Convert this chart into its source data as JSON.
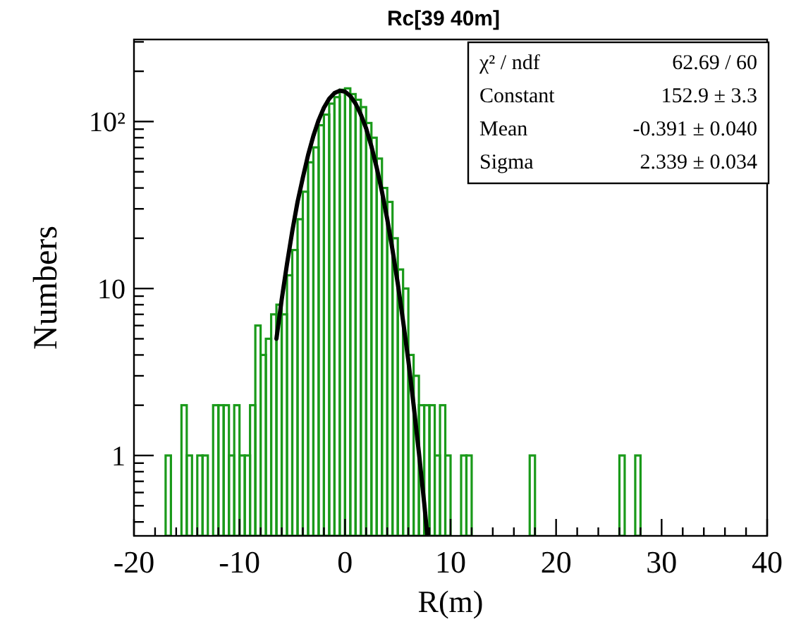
{
  "chart_data": {
    "type": "histogram",
    "title": "Rc[39 40m]",
    "xlabel": "R(m)",
    "ylabel": "Numbers",
    "log": "y",
    "bins": [
      -17,
      -16.5,
      -16,
      -15.5,
      -15,
      -14.5,
      -14,
      -13.5,
      -13,
      -12.5,
      -12,
      -11.5,
      -11,
      -10.5,
      -10,
      -9.5,
      -9,
      -8.5,
      -8,
      -7.5,
      -7,
      -6.5,
      -6,
      -5.5,
      -5,
      -4.5,
      -4,
      -3.5,
      -3,
      -2.5,
      -2,
      -1.5,
      -1,
      -0.5,
      0,
      0.5,
      1,
      1.5,
      2,
      2.5,
      3,
      3.5,
      4,
      4.5,
      5,
      5.5,
      6,
      6.5,
      7,
      7.5,
      8,
      8.5,
      9,
      9.5,
      10,
      10.5,
      11,
      11.5,
      12,
      12.5,
      13,
      13.5,
      14,
      14.5,
      15,
      15.5,
      16,
      16.5,
      17,
      17.5,
      18,
      18.5,
      19,
      19.5,
      20,
      20.5,
      21,
      21.5,
      22,
      22.5,
      23,
      23.5,
      24,
      24.5,
      25,
      25.5,
      26,
      26.5,
      27,
      27.5,
      28
    ],
    "values": [
      1,
      null,
      null,
      2,
      1,
      null,
      1,
      1,
      null,
      2,
      2,
      2,
      1,
      2,
      1,
      1,
      2,
      6,
      4,
      5,
      7,
      8,
      7,
      12,
      17,
      26,
      38,
      57,
      70,
      95,
      110,
      128,
      140,
      155,
      158,
      146,
      135,
      122,
      98,
      80,
      60,
      40,
      33,
      20,
      13,
      10,
      4,
      3,
      2,
      2,
      2,
      1,
      2,
      1,
      null,
      null,
      1,
      1,
      null,
      null,
      null,
      null,
      null,
      null,
      null,
      null,
      null,
      null,
      null,
      1,
      null,
      null,
      null,
      null,
      null,
      null,
      null,
      null,
      null,
      null,
      null,
      null,
      null,
      null,
      null,
      null,
      1,
      null,
      null,
      1
    ],
    "color": "#1a9a1a",
    "series": [
      {
        "type": "line",
        "color": "#000000",
        "x": [
          -6.5,
          -6,
          -5.5,
          -5,
          -4.5,
          -4,
          -3.5,
          -3,
          -2.5,
          -2,
          -1.5,
          -1,
          -0.5,
          0,
          0.5,
          1,
          1.5,
          2,
          2.5,
          3,
          3.5,
          4,
          4.5,
          5,
          5.5,
          6,
          6.5,
          7,
          7.5,
          7.8
        ],
        "values": [
          5,
          8.6,
          14,
          22,
          33,
          46,
          63,
          82,
          102,
          121,
          137,
          148,
          153,
          151,
          142,
          128,
          110,
          91,
          71,
          53,
          38,
          26,
          17,
          10.7,
          6.4,
          3.7,
          2,
          1.04,
          0.52,
          0.33
        ]
      }
    ],
    "xlim": [
      -20,
      40
    ],
    "ylim": [
      0.33,
      310
    ],
    "xticks": [
      -20,
      {
        "value": -18,
        "label": null
      },
      {
        "value": -16,
        "label": null
      },
      {
        "value": -14,
        "label": null
      },
      {
        "value": -12,
        "label": null
      },
      -10,
      {
        "value": -8,
        "label": null
      },
      {
        "value": -6,
        "label": null
      },
      {
        "value": -4,
        "label": null
      },
      {
        "value": -2,
        "label": null
      },
      0,
      {
        "value": 2,
        "label": null
      },
      {
        "value": 4,
        "label": null
      },
      {
        "value": 6,
        "label": null
      },
      {
        "value": 8,
        "label": null
      },
      10,
      {
        "value": 12,
        "label": null
      },
      {
        "value": 14,
        "label": null
      },
      {
        "value": 16,
        "label": null
      },
      {
        "value": 18,
        "label": null
      },
      20,
      {
        "value": 22,
        "label": null
      },
      {
        "value": 24,
        "label": null
      },
      {
        "value": 26,
        "label": null
      },
      {
        "value": 28,
        "label": null
      },
      30,
      {
        "value": 32,
        "label": null
      },
      {
        "value": 34,
        "label": null
      },
      {
        "value": 36,
        "label": null
      },
      {
        "value": 38,
        "label": null
      },
      40
    ],
    "yticks": [
      {
        "value": 0.4,
        "label": null
      },
      {
        "value": 0.5,
        "label": null
      },
      {
        "value": 0.6,
        "label": null
      },
      {
        "value": 0.7,
        "label": null
      },
      {
        "value": 0.8,
        "label": null
      },
      {
        "value": 0.9,
        "label": null
      },
      1,
      {
        "value": 2,
        "label": null
      },
      {
        "value": 3,
        "label": null
      },
      {
        "value": 4,
        "label": null
      },
      {
        "value": 5,
        "label": null
      },
      {
        "value": 6,
        "label": null
      },
      {
        "value": 7,
        "label": null
      },
      {
        "value": 8,
        "label": null
      },
      {
        "value": 9,
        "label": null
      },
      10,
      {
        "value": 20,
        "label": null
      },
      {
        "value": 30,
        "label": null
      },
      {
        "value": 40,
        "label": null
      },
      {
        "value": 50,
        "label": null
      },
      {
        "value": 60,
        "label": null
      },
      {
        "value": 70,
        "label": null
      },
      {
        "value": 80,
        "label": null
      },
      {
        "value": 90,
        "label": null
      },
      {
        "value": 100,
        "label": "10²"
      },
      {
        "value": 200,
        "label": null
      },
      {
        "value": 300,
        "label": null
      }
    ],
    "annotations": [
      "χ² / ndf",
      "62.69 / 60",
      "Constant",
      "152.9 ± 3.3",
      "Mean",
      "-0.391 ± 0.040",
      "Sigma",
      "2.339 ± 0.034"
    ]
  }
}
